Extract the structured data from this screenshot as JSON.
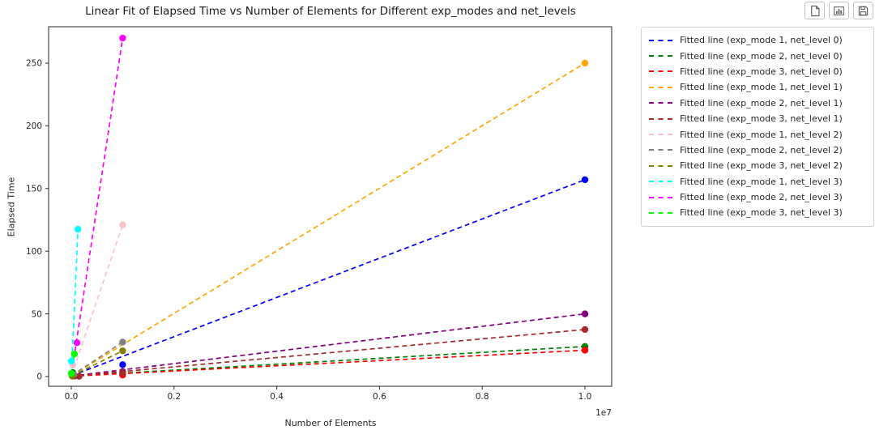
{
  "toolbar": {
    "buttons": [
      {
        "icon": "copy-icon"
      },
      {
        "icon": "bar-chart-icon"
      },
      {
        "icon": "save-icon"
      }
    ],
    "icon_color": "#595959",
    "border_color": "#c2c2c2"
  },
  "chart_data": {
    "type": "scatter",
    "title": "Linear Fit of Elapsed Time vs Number of Elements for Different exp_modes and net_levels",
    "xlabel": "Number of Elements",
    "ylabel": "Elapsed Time",
    "x_offset_text": "1e7",
    "xlim": [
      -500000,
      10500000
    ],
    "ylim": [
      -8,
      280
    ],
    "grid": false,
    "legend_position": "right of axes",
    "xticks": {
      "values": [
        0,
        2000000,
        4000000,
        6000000,
        8000000,
        10000000
      ],
      "labels": [
        "0.0",
        "0.2",
        "0.4",
        "0.6",
        "0.8",
        "1.0"
      ]
    },
    "yticks": {
      "values": [
        0,
        50,
        100,
        150,
        200,
        250
      ],
      "labels": [
        "0",
        "50",
        "100",
        "150",
        "200",
        "250"
      ]
    },
    "line_style": "dashed",
    "series": [
      {
        "label": "Fitted line (exp_mode 1, net_level 0)",
        "color": "#0000ff",
        "fit_line": {
          "x": [
            0,
            10000000
          ],
          "y": [
            0.5,
            157
          ]
        },
        "points": [
          [
            40000,
            1
          ],
          [
            1000000,
            9.5
          ],
          [
            10000000,
            157
          ]
        ]
      },
      {
        "label": "Fitted line (exp_mode 2, net_level 0)",
        "color": "#008000",
        "fit_line": {
          "x": [
            0,
            10000000
          ],
          "y": [
            0.4,
            24
          ]
        },
        "points": [
          [
            30000,
            3.2
          ],
          [
            1000000,
            2
          ],
          [
            10000000,
            24
          ]
        ]
      },
      {
        "label": "Fitted line (exp_mode 3, net_level 0)",
        "color": "#ff0000",
        "fit_line": {
          "x": [
            0,
            10000000
          ],
          "y": [
            0.3,
            21
          ]
        },
        "points": [
          [
            50000,
            0.5
          ],
          [
            1000000,
            1.2
          ],
          [
            10000000,
            21
          ]
        ]
      },
      {
        "label": "Fitted line (exp_mode 1, net_level 1)",
        "color": "#ffa500",
        "fit_line": {
          "x": [
            0,
            10000000
          ],
          "y": [
            0.5,
            250
          ]
        },
        "points": [
          [
            20000,
            0.3
          ],
          [
            10000000,
            250
          ]
        ]
      },
      {
        "label": "Fitted line (exp_mode 2, net_level 1)",
        "color": "#800080",
        "fit_line": {
          "x": [
            0,
            10000000
          ],
          "y": [
            0.4,
            50
          ]
        },
        "points": [
          [
            60000,
            0.5
          ],
          [
            1000000,
            4
          ],
          [
            10000000,
            50
          ]
        ]
      },
      {
        "label": "Fitted line (exp_mode 3, net_level 1)",
        "color": "#a52a2a",
        "fit_line": {
          "x": [
            0,
            10000000
          ],
          "y": [
            0.3,
            37.5
          ]
        },
        "points": [
          [
            150000,
            0.2
          ],
          [
            1000000,
            3
          ],
          [
            10000000,
            37.5
          ]
        ]
      },
      {
        "label": "Fitted line (exp_mode 1, net_level 2)",
        "color": "#ffc0cb",
        "fit_line": {
          "x": [
            0,
            1000000
          ],
          "y": [
            0.5,
            121
          ]
        },
        "points": [
          [
            30000,
            9.5
          ],
          [
            1000000,
            121
          ]
        ]
      },
      {
        "label": "Fitted line (exp_mode 2, net_level 2)",
        "color": "#808080",
        "fit_line": {
          "x": [
            0,
            1000000
          ],
          "y": [
            0.6,
            27.5
          ]
        },
        "points": [
          [
            50000,
            1.5
          ],
          [
            1000000,
            27.5
          ]
        ]
      },
      {
        "label": "Fitted line (exp_mode 3, net_level 2)",
        "color": "#808000",
        "fit_line": {
          "x": [
            0,
            1000000
          ],
          "y": [
            0.3,
            20.5
          ]
        },
        "points": [
          [
            20000,
            0.3
          ],
          [
            1000000,
            20.5
          ]
        ]
      },
      {
        "label": "Fitted line (exp_mode 1, net_level 3)",
        "color": "#00ffff",
        "fit_line": {
          "x": [
            0,
            130000
          ],
          "y": [
            0,
            117.5
          ]
        },
        "points": [
          [
            0,
            12.3
          ],
          [
            130000,
            117.5
          ]
        ]
      },
      {
        "label": "Fitted line (exp_mode 2, net_level 3)",
        "color": "#ff00ff",
        "fit_line": {
          "x": [
            0,
            1000000
          ],
          "y": [
            1,
            270
          ]
        },
        "points": [
          [
            110000,
            27
          ],
          [
            1000000,
            270
          ]
        ]
      },
      {
        "label": "Fitted line (exp_mode 3, net_level 3)",
        "color": "#00ff00",
        "fit_line": {
          "x": [
            0,
            60000
          ],
          "y": [
            0,
            18
          ]
        },
        "points": [
          [
            0,
            2.5
          ],
          [
            60000,
            18
          ]
        ]
      }
    ]
  }
}
